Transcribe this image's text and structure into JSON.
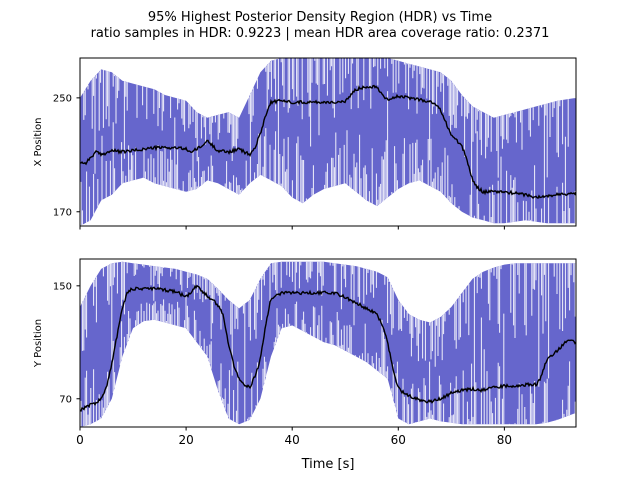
{
  "figure": {
    "title_line1": "95% Highest Posterior Density Region (HDR) vs Time",
    "title_line2": "ratio samples in HDR: 0.9223 | mean HDR area coverage ratio: 0.2371"
  },
  "colors": {
    "hdr_band": "#6666cc",
    "estimate": "#000000",
    "axes": "#000000"
  },
  "chart_data": [
    {
      "type": "area",
      "ylabel": "X Position",
      "xlabel": "",
      "xlim": [
        0,
        93.5
      ],
      "ylim": [
        160,
        278
      ],
      "yticks": [
        170,
        250
      ],
      "xticks": [
        0,
        20,
        40,
        60,
        80
      ],
      "xtick_labels_shown": false,
      "grid": false,
      "series": [
        {
          "kind": "hdr-band",
          "x": [
            0,
            2,
            4,
            6,
            8,
            10,
            12,
            14,
            16,
            18,
            20,
            22,
            24,
            26,
            28,
            30,
            32,
            34,
            36,
            38,
            40,
            42,
            44,
            46,
            48,
            50,
            52,
            54,
            56,
            58,
            60,
            62,
            64,
            66,
            68,
            70,
            72,
            74,
            76,
            78,
            80,
            82,
            84,
            86,
            88,
            90,
            93.5
          ],
          "lower": [
            160,
            164,
            178,
            182,
            190,
            192,
            194,
            190,
            188,
            186,
            184,
            186,
            192,
            190,
            186,
            182,
            190,
            196,
            192,
            188,
            180,
            176,
            182,
            186,
            188,
            190,
            184,
            178,
            174,
            180,
            186,
            190,
            192,
            188,
            184,
            176,
            170,
            166,
            164,
            162,
            162,
            163,
            164,
            163,
            162,
            162,
            162
          ],
          "upper": [
            250,
            262,
            270,
            268,
            262,
            260,
            258,
            256,
            252,
            250,
            248,
            240,
            236,
            238,
            240,
            236,
            252,
            268,
            276,
            278,
            278,
            278,
            278,
            278,
            278,
            278,
            278,
            278,
            278,
            278,
            276,
            274,
            272,
            270,
            268,
            262,
            252,
            244,
            240,
            236,
            238,
            240,
            242,
            244,
            246,
            248,
            250
          ]
        },
        {
          "kind": "estimate",
          "x": [
            0,
            1,
            2,
            3,
            4,
            6,
            8,
            10,
            12,
            14,
            16,
            18,
            20,
            21,
            22,
            23,
            24,
            26,
            28,
            30,
            31,
            32,
            33,
            34,
            35,
            36,
            38,
            40,
            44,
            48,
            50,
            51,
            52,
            54,
            56,
            57,
            58,
            60,
            62,
            64,
            66,
            67,
            68,
            70,
            71,
            72,
            73,
            74,
            75,
            76,
            78,
            80,
            82,
            84,
            86,
            88,
            90,
            93.5
          ],
          "y": [
            205,
            204,
            208,
            212,
            210,
            213,
            212,
            213,
            214,
            215,
            215,
            215,
            214,
            212,
            214,
            216,
            220,
            213,
            212,
            214,
            212,
            210,
            215,
            225,
            238,
            247,
            248,
            247,
            247,
            247,
            247,
            252,
            256,
            258,
            258,
            252,
            249,
            251,
            250,
            249,
            247,
            246,
            241,
            224,
            220,
            216,
            206,
            192,
            187,
            184,
            184,
            184,
            183,
            182,
            180,
            181,
            182,
            183
          ]
        }
      ]
    },
    {
      "type": "area",
      "ylabel": "Y Position",
      "xlabel": "Time [s]",
      "xlim": [
        0,
        93.5
      ],
      "ylim": [
        50,
        169
      ],
      "yticks": [
        70,
        150
      ],
      "xticks": [
        0,
        20,
        40,
        60,
        80
      ],
      "xtick_labels_shown": true,
      "grid": false,
      "series": [
        {
          "kind": "hdr-band",
          "x": [
            0,
            2,
            4,
            6,
            8,
            10,
            12,
            14,
            16,
            18,
            20,
            22,
            24,
            26,
            28,
            30,
            32,
            34,
            36,
            38,
            40,
            42,
            44,
            46,
            48,
            50,
            52,
            54,
            56,
            58,
            60,
            62,
            64,
            66,
            68,
            70,
            72,
            74,
            76,
            78,
            80,
            82,
            84,
            86,
            88,
            90,
            93.5
          ],
          "lower": [
            50,
            52,
            56,
            70,
            100,
            120,
            125,
            126,
            124,
            122,
            120,
            110,
            100,
            76,
            56,
            52,
            55,
            70,
            100,
            120,
            122,
            118,
            114,
            110,
            108,
            104,
            100,
            96,
            90,
            84,
            56,
            52,
            54,
            56,
            54,
            53,
            52,
            52,
            52,
            52,
            52,
            52,
            52,
            52,
            53,
            55,
            60
          ],
          "upper": [
            135,
            150,
            162,
            166,
            167,
            166,
            165,
            164,
            163,
            162,
            160,
            158,
            155,
            148,
            140,
            134,
            140,
            155,
            166,
            167,
            167,
            167,
            167,
            167,
            166,
            165,
            164,
            162,
            160,
            156,
            140,
            130,
            126,
            124,
            128,
            135,
            145,
            155,
            160,
            163,
            165,
            166,
            166,
            166,
            166,
            166,
            166
          ]
        },
        {
          "kind": "estimate",
          "x": [
            0,
            1,
            2,
            3,
            4,
            5,
            6,
            7,
            8,
            9,
            10,
            12,
            14,
            16,
            18,
            19,
            20,
            21,
            22,
            23,
            24,
            25,
            26,
            27,
            28,
            29,
            30,
            31,
            32,
            33,
            34,
            35,
            36,
            38,
            40,
            44,
            48,
            50,
            52,
            54,
            56,
            57,
            58,
            59,
            60,
            61,
            62,
            64,
            66,
            68,
            70,
            72,
            74,
            76,
            78,
            80,
            82,
            84,
            86,
            87,
            88,
            90,
            92,
            93.5
          ],
          "y": [
            62,
            64,
            66,
            67,
            70,
            78,
            95,
            115,
            135,
            146,
            148,
            148,
            148,
            147,
            146,
            144,
            142,
            146,
            150,
            146,
            143,
            140,
            136,
            130,
            108,
            94,
            84,
            80,
            78,
            86,
            98,
            122,
            141,
            145,
            145,
            145,
            145,
            142,
            138,
            134,
            130,
            122,
            110,
            90,
            78,
            74,
            72,
            69,
            68,
            70,
            74,
            76,
            77,
            76,
            78,
            79,
            79,
            80,
            80,
            86,
            98,
            104,
            112,
            110
          ]
        }
      ]
    }
  ]
}
